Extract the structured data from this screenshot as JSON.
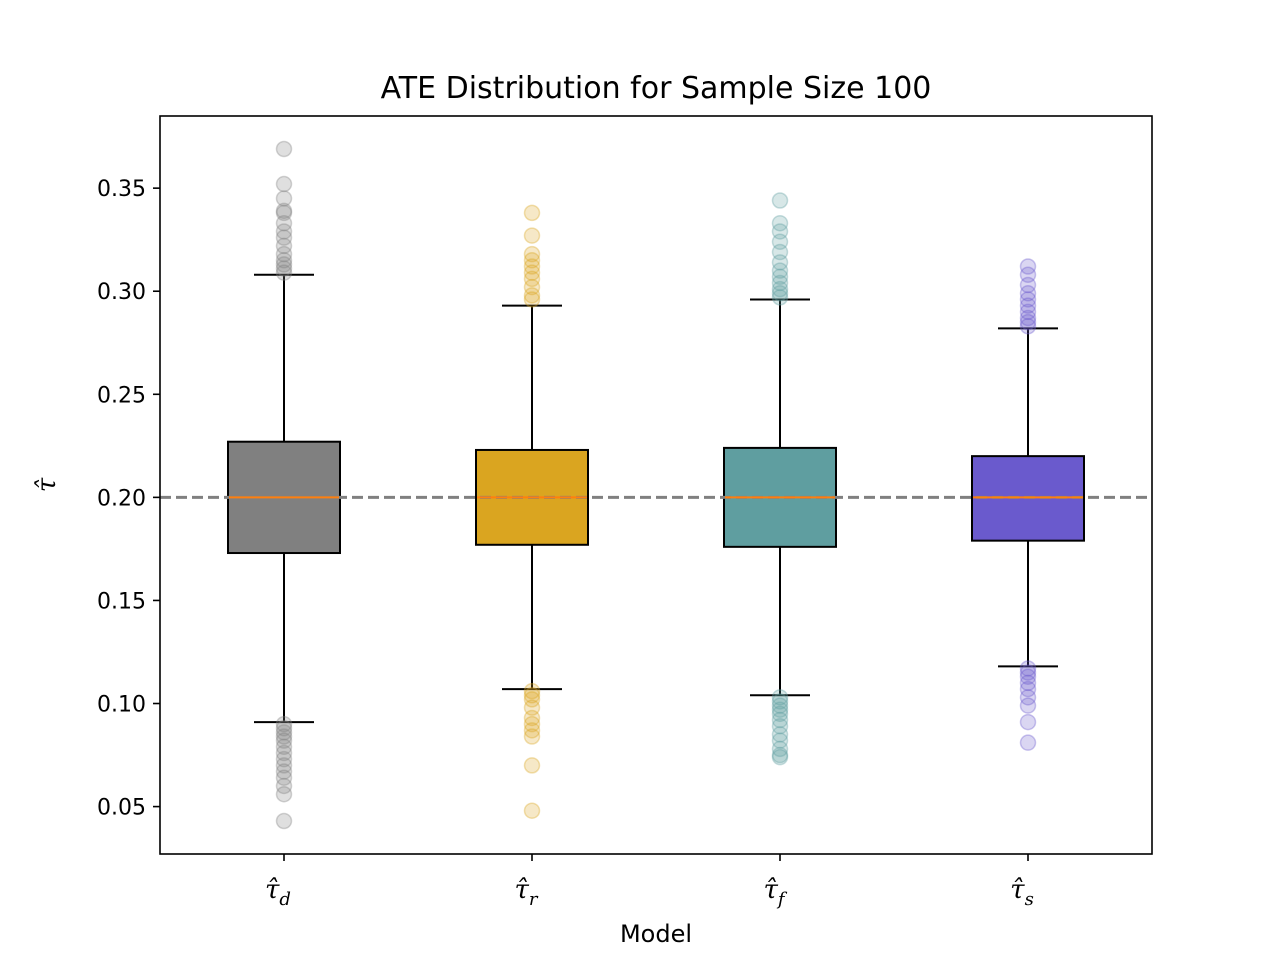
{
  "chart_data": {
    "type": "box",
    "title": "ATE Distribution for Sample Size 100",
    "xlabel": "Model",
    "ylabel": "τ̂",
    "ylim": [
      0.027,
      0.385
    ],
    "yticks": [
      0.05,
      0.1,
      0.15,
      0.2,
      0.25,
      0.3,
      0.35
    ],
    "ytick_labels": [
      "0.05",
      "0.10",
      "0.15",
      "0.20",
      "0.25",
      "0.30",
      "0.35"
    ],
    "reference_line": {
      "y": 0.2,
      "color": "#808080",
      "style": "dashed"
    },
    "median_color": "#ff7f0e",
    "series": [
      {
        "label": "τ̂",
        "subscript": "d",
        "color": "#808080",
        "whisker_low": 0.091,
        "q1": 0.173,
        "median": 0.2,
        "q3": 0.227,
        "whisker_high": 0.308,
        "outliers": [
          0.369,
          0.352,
          0.345,
          0.339,
          0.338,
          0.333,
          0.329,
          0.326,
          0.322,
          0.318,
          0.315,
          0.313,
          0.311,
          0.309,
          0.09,
          0.088,
          0.086,
          0.084,
          0.082,
          0.079,
          0.076,
          0.073,
          0.07,
          0.067,
          0.064,
          0.06,
          0.056,
          0.043
        ]
      },
      {
        "label": "τ̂",
        "subscript": "r",
        "color": "#daa520",
        "whisker_low": 0.107,
        "q1": 0.177,
        "median": 0.2,
        "q3": 0.223,
        "whisker_high": 0.293,
        "outliers": [
          0.338,
          0.327,
          0.318,
          0.315,
          0.312,
          0.309,
          0.306,
          0.302,
          0.298,
          0.296,
          0.106,
          0.104,
          0.102,
          0.098,
          0.093,
          0.09,
          0.087,
          0.084,
          0.07,
          0.048
        ]
      },
      {
        "label": "τ̂",
        "subscript": "f",
        "color": "#5f9ea0",
        "whisker_low": 0.104,
        "q1": 0.176,
        "median": 0.2,
        "q3": 0.224,
        "whisker_high": 0.296,
        "outliers": [
          0.344,
          0.333,
          0.329,
          0.324,
          0.319,
          0.314,
          0.31,
          0.307,
          0.304,
          0.301,
          0.299,
          0.297,
          0.103,
          0.101,
          0.099,
          0.097,
          0.095,
          0.092,
          0.089,
          0.085,
          0.082,
          0.078,
          0.075,
          0.074
        ]
      },
      {
        "label": "τ̂",
        "subscript": "s",
        "color": "#6a5acd",
        "whisker_low": 0.118,
        "q1": 0.179,
        "median": 0.2,
        "q3": 0.22,
        "whisker_high": 0.282,
        "outliers": [
          0.312,
          0.308,
          0.303,
          0.299,
          0.296,
          0.293,
          0.29,
          0.287,
          0.285,
          0.283,
          0.117,
          0.115,
          0.113,
          0.11,
          0.107,
          0.103,
          0.099,
          0.091,
          0.081
        ]
      }
    ],
    "grid": false
  }
}
